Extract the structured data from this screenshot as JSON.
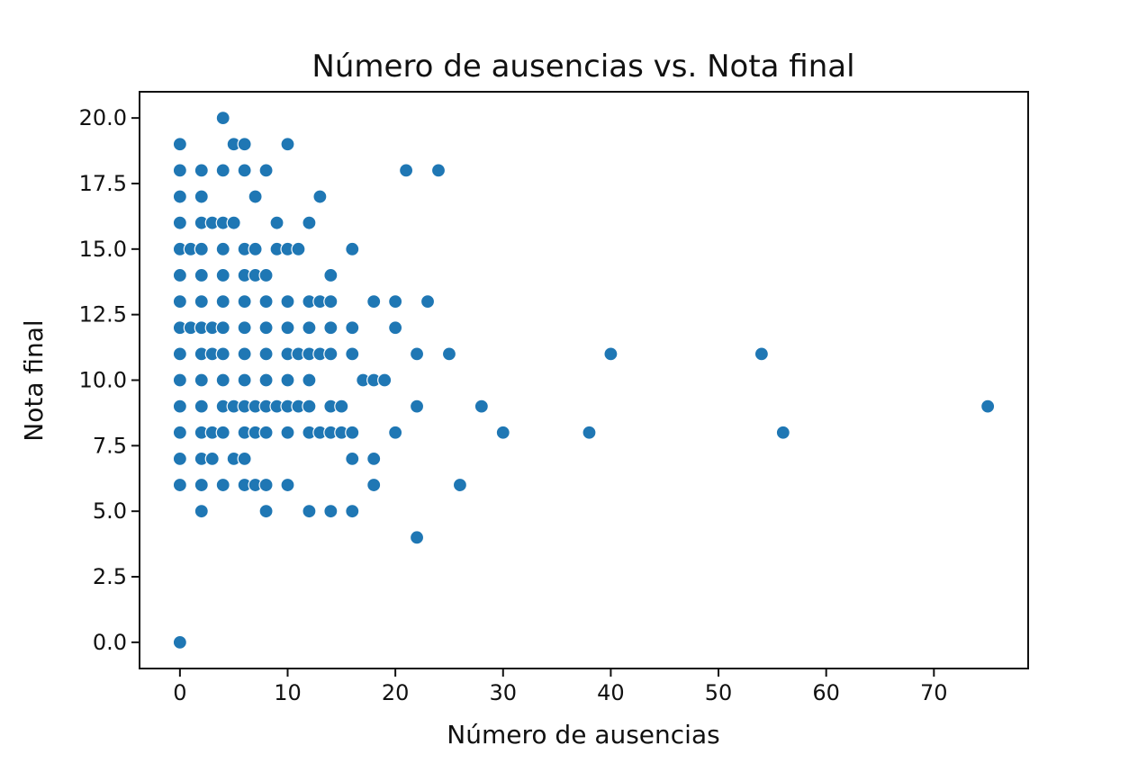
{
  "chart_data": {
    "type": "scatter",
    "title": "Número de ausencias vs. Nota final",
    "xlabel": "Número de ausencias",
    "ylabel": "Nota final",
    "xlim": [
      -3.75,
      78.75
    ],
    "ylim": [
      -1.0,
      21.0
    ],
    "xticks": [
      0,
      10,
      20,
      30,
      40,
      50,
      60,
      70
    ],
    "yticks": [
      0.0,
      2.5,
      5.0,
      7.5,
      10.0,
      12.5,
      15.0,
      17.5,
      20.0
    ],
    "xtick_labels": [
      "0",
      "10",
      "20",
      "30",
      "40",
      "50",
      "60",
      "70"
    ],
    "ytick_labels": [
      "0.0",
      "2.5",
      "5.0",
      "7.5",
      "10.0",
      "12.5",
      "15.0",
      "17.5",
      "20.0"
    ],
    "grid": false,
    "marker_color": "#1f77b4",
    "points": [
      [
        4,
        20
      ],
      [
        0,
        19
      ],
      [
        5,
        19
      ],
      [
        6,
        19
      ],
      [
        10,
        19
      ],
      [
        0,
        18
      ],
      [
        2,
        18
      ],
      [
        4,
        18
      ],
      [
        6,
        18
      ],
      [
        8,
        18
      ],
      [
        21,
        18
      ],
      [
        24,
        18
      ],
      [
        0,
        17
      ],
      [
        2,
        17
      ],
      [
        7,
        17
      ],
      [
        13,
        17
      ],
      [
        0,
        16
      ],
      [
        2,
        16
      ],
      [
        3,
        16
      ],
      [
        4,
        16
      ],
      [
        5,
        16
      ],
      [
        9,
        16
      ],
      [
        12,
        16
      ],
      [
        0,
        15
      ],
      [
        1,
        15
      ],
      [
        2,
        15
      ],
      [
        4,
        15
      ],
      [
        6,
        15
      ],
      [
        7,
        15
      ],
      [
        9,
        15
      ],
      [
        10,
        15
      ],
      [
        11,
        15
      ],
      [
        16,
        15
      ],
      [
        0,
        14
      ],
      [
        2,
        14
      ],
      [
        4,
        14
      ],
      [
        6,
        14
      ],
      [
        7,
        14
      ],
      [
        8,
        14
      ],
      [
        14,
        14
      ],
      [
        0,
        13
      ],
      [
        2,
        13
      ],
      [
        4,
        13
      ],
      [
        6,
        13
      ],
      [
        8,
        13
      ],
      [
        10,
        13
      ],
      [
        12,
        13
      ],
      [
        13,
        13
      ],
      [
        14,
        13
      ],
      [
        18,
        13
      ],
      [
        20,
        13
      ],
      [
        23,
        13
      ],
      [
        0,
        12
      ],
      [
        1,
        12
      ],
      [
        2,
        12
      ],
      [
        3,
        12
      ],
      [
        4,
        12
      ],
      [
        6,
        12
      ],
      [
        8,
        12
      ],
      [
        10,
        12
      ],
      [
        12,
        12
      ],
      [
        14,
        12
      ],
      [
        16,
        12
      ],
      [
        20,
        12
      ],
      [
        0,
        11
      ],
      [
        2,
        11
      ],
      [
        3,
        11
      ],
      [
        4,
        11
      ],
      [
        6,
        11
      ],
      [
        8,
        11
      ],
      [
        10,
        11
      ],
      [
        11,
        11
      ],
      [
        12,
        11
      ],
      [
        13,
        11
      ],
      [
        14,
        11
      ],
      [
        16,
        11
      ],
      [
        22,
        11
      ],
      [
        25,
        11
      ],
      [
        40,
        11
      ],
      [
        54,
        11
      ],
      [
        0,
        10
      ],
      [
        2,
        10
      ],
      [
        4,
        10
      ],
      [
        6,
        10
      ],
      [
        8,
        10
      ],
      [
        10,
        10
      ],
      [
        12,
        10
      ],
      [
        17,
        10
      ],
      [
        18,
        10
      ],
      [
        19,
        10
      ],
      [
        0,
        9
      ],
      [
        2,
        9
      ],
      [
        4,
        9
      ],
      [
        5,
        9
      ],
      [
        6,
        9
      ],
      [
        7,
        9
      ],
      [
        8,
        9
      ],
      [
        9,
        9
      ],
      [
        10,
        9
      ],
      [
        11,
        9
      ],
      [
        12,
        9
      ],
      [
        14,
        9
      ],
      [
        15,
        9
      ],
      [
        22,
        9
      ],
      [
        28,
        9
      ],
      [
        75,
        9
      ],
      [
        0,
        8
      ],
      [
        2,
        8
      ],
      [
        3,
        8
      ],
      [
        4,
        8
      ],
      [
        6,
        8
      ],
      [
        7,
        8
      ],
      [
        8,
        8
      ],
      [
        10,
        8
      ],
      [
        12,
        8
      ],
      [
        13,
        8
      ],
      [
        14,
        8
      ],
      [
        15,
        8
      ],
      [
        16,
        8
      ],
      [
        20,
        8
      ],
      [
        30,
        8
      ],
      [
        38,
        8
      ],
      [
        56,
        8
      ],
      [
        0,
        7
      ],
      [
        2,
        7
      ],
      [
        3,
        7
      ],
      [
        5,
        7
      ],
      [
        6,
        7
      ],
      [
        16,
        7
      ],
      [
        18,
        7
      ],
      [
        0,
        6
      ],
      [
        2,
        6
      ],
      [
        4,
        6
      ],
      [
        6,
        6
      ],
      [
        7,
        6
      ],
      [
        8,
        6
      ],
      [
        10,
        6
      ],
      [
        18,
        6
      ],
      [
        26,
        6
      ],
      [
        2,
        5
      ],
      [
        8,
        5
      ],
      [
        12,
        5
      ],
      [
        14,
        5
      ],
      [
        16,
        5
      ],
      [
        22,
        4
      ],
      [
        0,
        0
      ]
    ]
  }
}
